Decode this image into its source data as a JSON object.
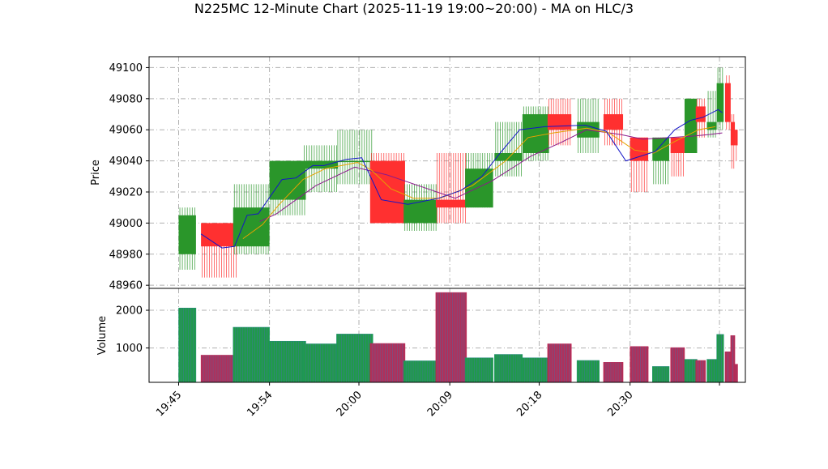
{
  "chart_data": {
    "type": "candlestick",
    "title": "N225MC 12-Minute Chart (2025-11-19 19:00~20:00) - MA on HLC/3",
    "price_panel": {
      "ylabel": "Price",
      "ylim": [
        48958,
        49107
      ],
      "yticks": [
        48960,
        48980,
        49000,
        49020,
        49040,
        49060,
        49080,
        49100
      ],
      "grid": true
    },
    "volume_panel": {
      "ylabel": "Volume",
      "ylim": [
        90,
        2580
      ],
      "yticks": [
        1000,
        2000
      ],
      "grid": true
    },
    "x_labels": [
      "19:45",
      "19:54",
      "20:00",
      "20:09",
      "20:18",
      "20:30"
    ],
    "colors": {
      "up": "#2a962a",
      "down": "#ff3030",
      "ma_fast": "#1414c8",
      "ma_mid": "#e6a200",
      "ma_slow": "#8b1a8b",
      "volume_up_edge": "#1f8a7a",
      "volume_down_edge": "#c02050",
      "grid": "#b0b0b0"
    },
    "candles": [
      {
        "open": 48980,
        "high": 49010,
        "low": 48970,
        "close": 49005,
        "volume": 2060
      },
      {
        "open": 49000,
        "high": 49000,
        "low": 48965,
        "close": 48985,
        "volume": 810
      },
      {
        "open": 48985,
        "high": 49025,
        "low": 48980,
        "close": 49010,
        "volume": 1550
      },
      {
        "open": 49015,
        "high": 49040,
        "low": 49005,
        "close": 49040,
        "volume": 1180
      },
      {
        "open": 49035,
        "high": 49050,
        "low": 49020,
        "close": 49040,
        "volume": 1110
      },
      {
        "open": 49040,
        "high": 49060,
        "low": 49025,
        "close": 49040,
        "volume": 1370
      },
      {
        "open": 49040,
        "high": 49045,
        "low": 49000,
        "close": 49000,
        "volume": 1120
      },
      {
        "open": 49000,
        "high": 49025,
        "low": 48995,
        "close": 49015,
        "volume": 660
      },
      {
        "open": 49015,
        "high": 49045,
        "low": 49000,
        "close": 49010,
        "volume": 2470
      },
      {
        "open": 49010,
        "high": 49045,
        "low": 49010,
        "close": 49035,
        "volume": 740
      },
      {
        "open": 49040,
        "high": 49065,
        "low": 49030,
        "close": 49045,
        "volume": 830
      },
      {
        "open": 49045,
        "high": 49075,
        "low": 49040,
        "close": 49070,
        "volume": 740
      },
      {
        "open": 49070,
        "high": 49080,
        "low": 49050,
        "close": 49060,
        "volume": 1110
      },
      {
        "open": 49055,
        "high": 49080,
        "low": 49045,
        "close": 49065,
        "volume": 670
      },
      {
        "open": 49070,
        "high": 49080,
        "low": 49050,
        "close": 49060,
        "volume": 620
      },
      {
        "open": 49055,
        "high": 49055,
        "low": 49020,
        "close": 49040,
        "volume": 1040
      },
      {
        "open": 49040,
        "high": 49055,
        "low": 49025,
        "close": 49055,
        "volume": 510
      },
      {
        "open": 49055,
        "high": 49055,
        "low": 49030,
        "close": 49045,
        "volume": 1010
      },
      {
        "open": 49045,
        "high": 49080,
        "low": 49045,
        "close": 49080,
        "volume": 700
      },
      {
        "open": 49075,
        "high": 49080,
        "low": 49055,
        "close": 49065,
        "volume": 670
      },
      {
        "open": 49060,
        "high": 49085,
        "low": 49055,
        "close": 49065,
        "volume": 700
      },
      {
        "open": 49065,
        "high": 49100,
        "low": 49060,
        "close": 49090,
        "volume": 1360
      },
      {
        "open": 49090,
        "high": 49095,
        "low": 49060,
        "close": 49065,
        "volume": 900
      },
      {
        "open": 49065,
        "high": 49070,
        "low": 49035,
        "close": 49050,
        "volume": 1330
      },
      {
        "open": 49060,
        "high": 49060,
        "low": 49040,
        "close": 49050,
        "volume": 570
      }
    ],
    "ma_fast": [
      [
        0.0,
        null
      ],
      [
        0.8,
        48993
      ],
      [
        1.55,
        48984
      ],
      [
        2.0,
        48985
      ],
      [
        2.45,
        49005
      ],
      [
        2.85,
        49006
      ],
      [
        3.7,
        49028
      ],
      [
        4.2,
        49029
      ],
      [
        4.8,
        49037
      ],
      [
        5.2,
        49037
      ],
      [
        6.0,
        49041
      ],
      [
        6.55,
        49042
      ],
      [
        7.25,
        49015
      ],
      [
        8.2,
        49012
      ],
      [
        9.3,
        49016
      ],
      [
        10.1,
        49021
      ],
      [
        10.85,
        49030
      ],
      [
        11.5,
        49045
      ],
      [
        12.2,
        49060
      ],
      [
        13.1,
        49062
      ],
      [
        14.55,
        49063
      ],
      [
        15.3,
        49059
      ],
      [
        16.0,
        49040
      ],
      [
        17.05,
        49046
      ],
      [
        17.75,
        49060
      ],
      [
        18.3,
        49066
      ],
      [
        18.75,
        49068
      ],
      [
        19.3,
        49073
      ],
      [
        19.45,
        49071
      ]
    ],
    "ma_mid": [
      [
        2.3,
        48990
      ],
      [
        3.0,
        48999
      ],
      [
        3.6,
        49012
      ],
      [
        4.45,
        49028
      ],
      [
        5.25,
        49035
      ],
      [
        6.4,
        49039
      ],
      [
        6.9,
        49034
      ],
      [
        7.6,
        49022
      ],
      [
        8.4,
        49016
      ],
      [
        9.35,
        49016
      ],
      [
        10.5,
        49024
      ],
      [
        11.7,
        49040
      ],
      [
        12.5,
        49055
      ],
      [
        13.4,
        49058
      ],
      [
        14.6,
        49061
      ],
      [
        15.4,
        49058
      ],
      [
        16.3,
        49047
      ],
      [
        17.0,
        49045
      ],
      [
        17.7,
        49052
      ],
      [
        18.6,
        49060
      ],
      [
        19.2,
        49062
      ]
    ],
    "ma_slow": [
      [
        2.9,
        49001
      ],
      [
        3.5,
        49006
      ],
      [
        4.9,
        49024
      ],
      [
        6.3,
        49036
      ],
      [
        7.45,
        49031
      ],
      [
        8.75,
        49023
      ],
      [
        9.9,
        49016
      ],
      [
        11.2,
        49027
      ],
      [
        12.6,
        49043
      ],
      [
        13.7,
        49052
      ],
      [
        14.6,
        49060
      ],
      [
        15.8,
        49057
      ],
      [
        16.6,
        49054
      ],
      [
        17.6,
        49055
      ],
      [
        18.45,
        49056
      ],
      [
        19.0,
        49057
      ],
      [
        19.45,
        49058
      ]
    ]
  }
}
